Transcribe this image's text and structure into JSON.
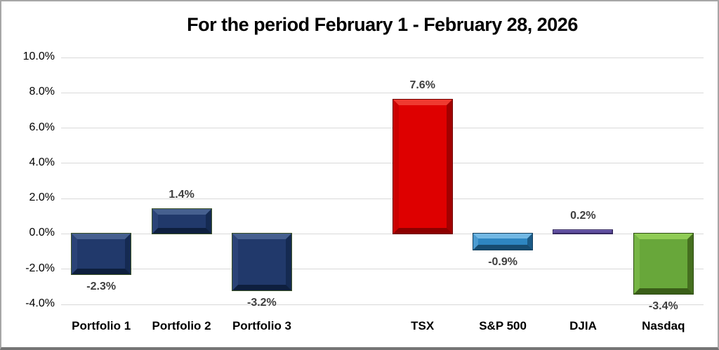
{
  "chart_data": {
    "type": "bar",
    "title": "For the period February 1 - February 28, 2026",
    "categories": [
      "Portfolio 1",
      "Portfolio 2",
      "Portfolio 3",
      "",
      "TSX",
      "S&P 500",
      "DJIA",
      "Nasdaq"
    ],
    "values": [
      -2.3,
      1.4,
      -3.2,
      null,
      7.6,
      -0.9,
      0.2,
      -3.4
    ],
    "value_labels": [
      "-2.3%",
      "1.4%",
      "-3.2%",
      "",
      "7.6%",
      "-0.9%",
      "0.2%",
      "-3.4%"
    ],
    "xlabel": "",
    "ylabel": "",
    "ylim": [
      -4,
      10
    ],
    "ytick_step": 2,
    "yticks": [
      {
        "value": 10,
        "label": "10.0%"
      },
      {
        "value": 8,
        "label": "8.0%"
      },
      {
        "value": 6,
        "label": "6.0%"
      },
      {
        "value": 4,
        "label": "4.0%"
      },
      {
        "value": 2,
        "label": "2.0%"
      },
      {
        "value": 0,
        "label": "0.0%"
      },
      {
        "value": -2,
        "label": "-2.0%"
      },
      {
        "value": -4,
        "label": "-4.0%"
      }
    ],
    "grid": true,
    "legend_position": "none",
    "bar_style": "3d-bevel",
    "colors": [
      {
        "fill": "#21396b",
        "light": "#46608f",
        "mid": "#2b4377",
        "dark": "#152a52",
        "darker": "#0e1f3e",
        "outline": "#3c5226"
      },
      {
        "fill": "#21396b",
        "light": "#46608f",
        "mid": "#2b4377",
        "dark": "#152a52",
        "darker": "#0e1f3e",
        "outline": "#3c5226"
      },
      {
        "fill": "#21396b",
        "light": "#46608f",
        "mid": "#2b4377",
        "dark": "#152a52",
        "darker": "#0e1f3e",
        "outline": "#3c5226"
      },
      null,
      {
        "fill": "#de0000",
        "light": "#ef3a30",
        "mid": "#cb0000",
        "dark": "#a30000",
        "darker": "#8c0000",
        "outline": "#6e0000"
      },
      {
        "fill": "#2e86c1",
        "light": "#72b8e4",
        "mid": "#4a9ad0",
        "dark": "#1c5b87",
        "darker": "#174c71",
        "outline": "#123f5e"
      },
      {
        "fill": "#5c4b9c",
        "light": "#7a6bbe",
        "mid": "#675aa9",
        "dark": "#443474",
        "darker": "#3b2c66",
        "outline": "#31255a"
      },
      {
        "fill": "#68a73a",
        "light": "#90cc55",
        "mid": "#76b545",
        "dark": "#456f1f",
        "darker": "#3a5e18",
        "outline": "#2e4d12"
      }
    ],
    "grid_color": "#d9d9d9",
    "data_label_color": "#3f3f3f",
    "axis_label_color": "#000000"
  }
}
